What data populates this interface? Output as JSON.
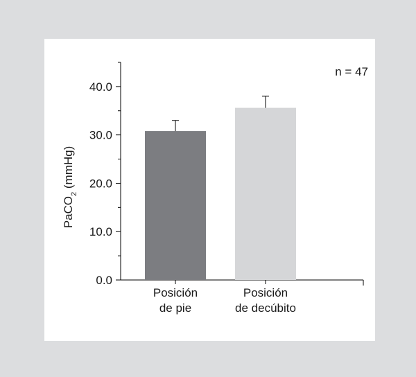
{
  "chart_data": {
    "type": "bar",
    "categories": [
      [
        "Posición",
        "de pie"
      ],
      [
        "Posición",
        "de decúbito"
      ]
    ],
    "values": [
      30.8,
      35.6
    ],
    "error_upper": [
      33.0,
      38.0
    ],
    "colors": [
      "#7c7d81",
      "#d5d6d8"
    ],
    "ylabel_main": "PaCO",
    "ylabel_sub": "2",
    "ylabel_unit": " (mmHg)",
    "ylim": [
      0,
      45
    ],
    "yticks": [
      0,
      10,
      20,
      30,
      40
    ],
    "ytick_labels": [
      "0.0",
      "10.0",
      "20.0",
      "30.0",
      "40.0"
    ],
    "annotation": "n = 47",
    "legend": "none",
    "grid": false
  }
}
